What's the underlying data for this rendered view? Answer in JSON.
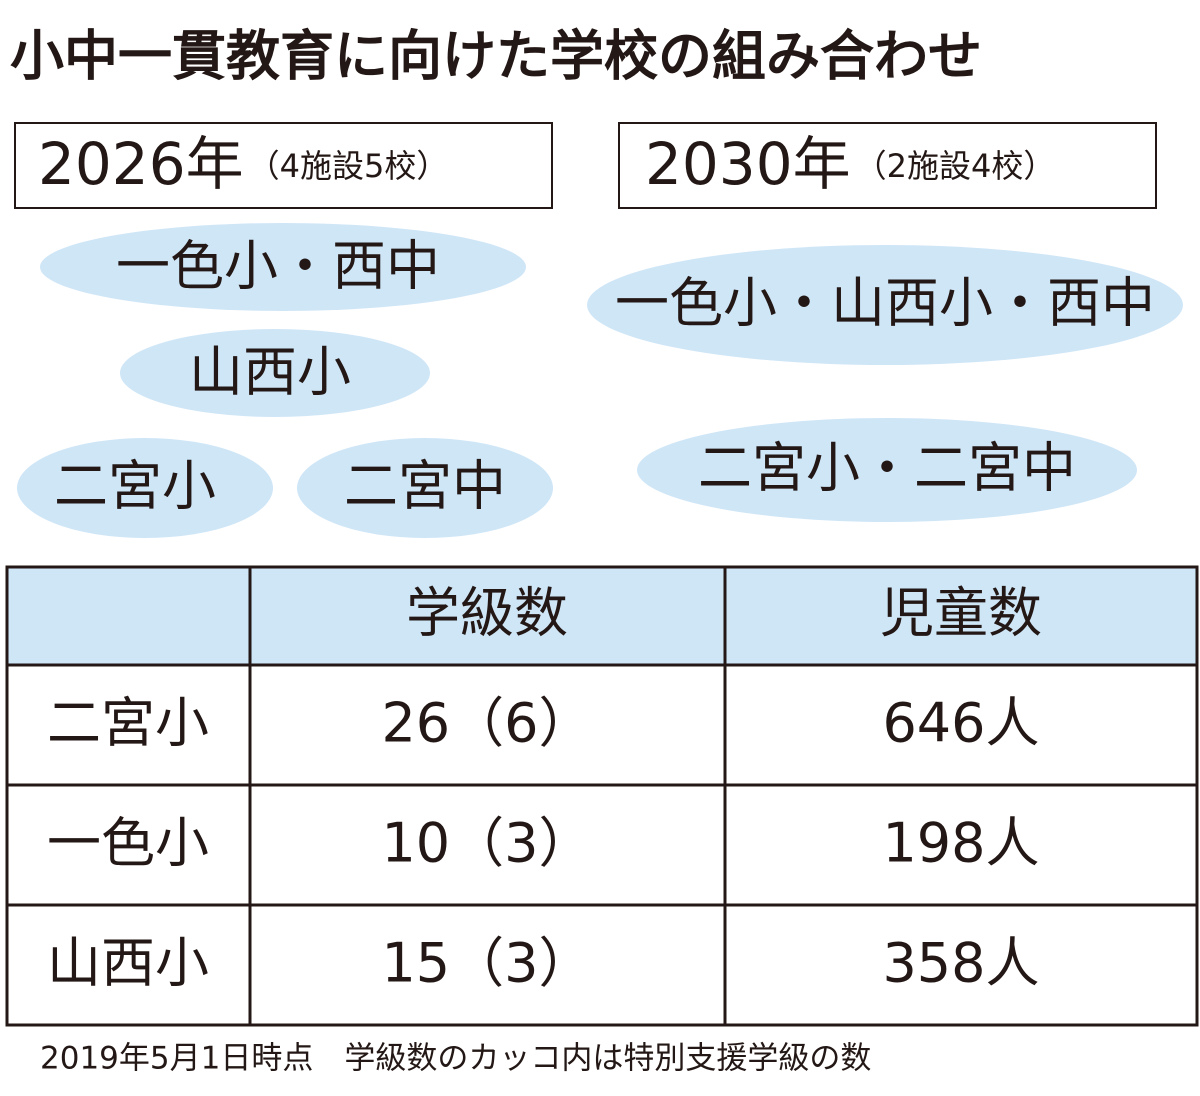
{
  "title": "小中一貫教育に向けた学校の組み合わせ",
  "plans": [
    {
      "year": "2026年",
      "note": "（4施設5校）",
      "groups": [
        "一色小・西中",
        "山西小",
        "二宮小",
        "二宮中"
      ]
    },
    {
      "year": "2030年",
      "note": "（2施設4校）",
      "groups": [
        "一色小・山西小・西中",
        "二宮小・二宮中"
      ]
    }
  ],
  "table": {
    "header": [
      "学級数",
      "児童数"
    ],
    "rows": [
      [
        "二宮小",
        "26（6）",
        "646人"
      ],
      [
        "一色小",
        "10（3）",
        "198人"
      ],
      [
        "山西小",
        "15（3）",
        "358人"
      ]
    ]
  },
  "footnote": "2019年5月1日時点　学級数のカッコ内は特別支援学級の数"
}
